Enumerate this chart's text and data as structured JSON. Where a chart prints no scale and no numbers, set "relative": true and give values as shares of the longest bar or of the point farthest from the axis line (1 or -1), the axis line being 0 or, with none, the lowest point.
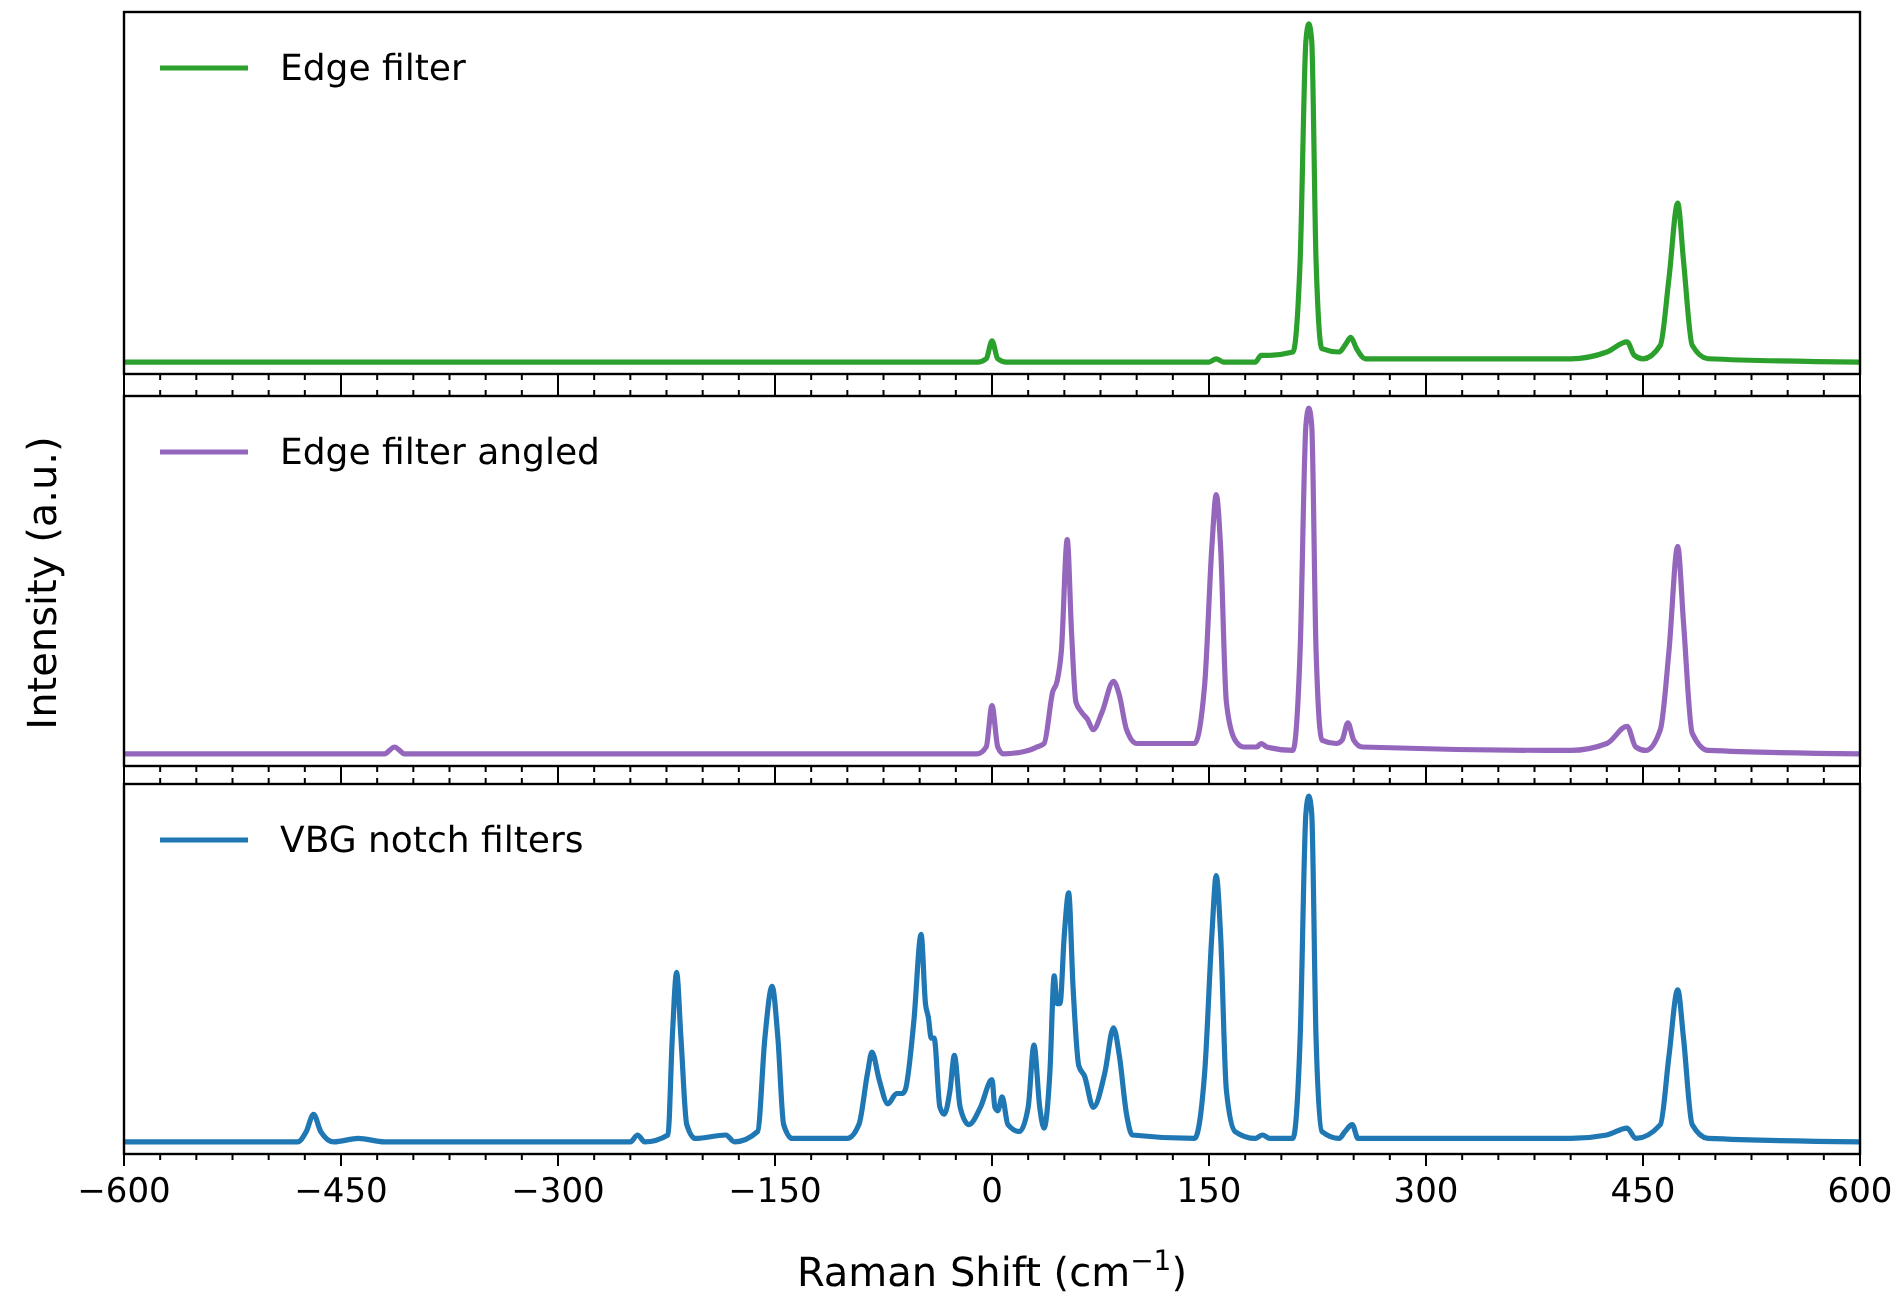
{
  "chart_data": [
    {
      "type": "line",
      "relative": true,
      "legend": "top left",
      "tick_labels": false,
      "xlim": [
        -600,
        600
      ],
      "xticks": [
        {
          "value": -600,
          "label": null
        },
        {
          "value": -575,
          "label": null
        },
        {
          "value": -550,
          "label": null
        },
        {
          "value": -525,
          "label": null
        },
        {
          "value": -500,
          "label": null
        },
        {
          "value": -475,
          "label": null
        },
        {
          "value": -450,
          "label": null
        },
        {
          "value": -425,
          "label": null
        },
        {
          "value": -400,
          "label": null
        },
        {
          "value": -375,
          "label": null
        },
        {
          "value": -350,
          "label": null
        },
        {
          "value": -325,
          "label": null
        },
        {
          "value": -300,
          "label": null
        },
        {
          "value": -275,
          "label": null
        },
        {
          "value": -250,
          "label": null
        },
        {
          "value": -225,
          "label": null
        },
        {
          "value": -200,
          "label": null
        },
        {
          "value": -175,
          "label": null
        },
        {
          "value": -150,
          "label": null
        },
        {
          "value": -125,
          "label": null
        },
        {
          "value": -100,
          "label": null
        },
        {
          "value": -75,
          "label": null
        },
        {
          "value": -50,
          "label": null
        },
        {
          "value": -25,
          "label": null
        },
        {
          "value": 0,
          "label": null
        },
        {
          "value": 25,
          "label": null
        },
        {
          "value": 50,
          "label": null
        },
        {
          "value": 75,
          "label": null
        },
        {
          "value": 100,
          "label": null
        },
        {
          "value": 125,
          "label": null
        },
        {
          "value": 150,
          "label": null
        },
        {
          "value": 175,
          "label": null
        },
        {
          "value": 200,
          "label": null
        },
        {
          "value": 225,
          "label": null
        },
        {
          "value": 250,
          "label": null
        },
        {
          "value": 275,
          "label": null
        },
        {
          "value": 300,
          "label": null
        },
        {
          "value": 325,
          "label": null
        },
        {
          "value": 350,
          "label": null
        },
        {
          "value": 375,
          "label": null
        },
        {
          "value": 400,
          "label": null
        },
        {
          "value": 425,
          "label": null
        },
        {
          "value": 450,
          "label": null
        },
        {
          "value": 475,
          "label": null
        },
        {
          "value": 500,
          "label": null
        },
        {
          "value": 525,
          "label": null
        },
        {
          "value": 550,
          "label": null
        },
        {
          "value": 575,
          "label": null
        },
        {
          "value": 600,
          "label": null
        }
      ],
      "series": [
        {
          "name": "Edge filter",
          "color": "#2ca02c",
          "x": [
            -600,
            -10,
            -4,
            0,
            4,
            10,
            150,
            155,
            160,
            182,
            186,
            190,
            208,
            213,
            217,
            219,
            221,
            224,
            228,
            240,
            244,
            248,
            252,
            258,
            400,
            425,
            439,
            444,
            450,
            462,
            468,
            474,
            478,
            484,
            495,
            600
          ],
          "values": [
            0,
            0,
            0.01,
            0.063,
            0.01,
            0,
            0,
            0.01,
            0,
            0,
            0.02,
            0.02,
            0.03,
            0.3,
            0.95,
            1,
            0.95,
            0.3,
            0.04,
            0.03,
            0.05,
            0.073,
            0.04,
            0.01,
            0.01,
            0.03,
            0.06,
            0.02,
            0.01,
            0.05,
            0.25,
            0.47,
            0.3,
            0.05,
            0.01,
            0
          ]
        }
      ]
    },
    {
      "type": "line",
      "relative": true,
      "legend": "top left",
      "tick_labels": false,
      "xlim": [
        -600,
        600
      ],
      "ylabel": "Intensity (a.u.)",
      "xticks": [
        {
          "value": -600,
          "label": null
        },
        {
          "value": -575,
          "label": null
        },
        {
          "value": -550,
          "label": null
        },
        {
          "value": -525,
          "label": null
        },
        {
          "value": -500,
          "label": null
        },
        {
          "value": -475,
          "label": null
        },
        {
          "value": -450,
          "label": null
        },
        {
          "value": -425,
          "label": null
        },
        {
          "value": -400,
          "label": null
        },
        {
          "value": -375,
          "label": null
        },
        {
          "value": -350,
          "label": null
        },
        {
          "value": -325,
          "label": null
        },
        {
          "value": -300,
          "label": null
        },
        {
          "value": -275,
          "label": null
        },
        {
          "value": -250,
          "label": null
        },
        {
          "value": -225,
          "label": null
        },
        {
          "value": -200,
          "label": null
        },
        {
          "value": -175,
          "label": null
        },
        {
          "value": -150,
          "label": null
        },
        {
          "value": -125,
          "label": null
        },
        {
          "value": -100,
          "label": null
        },
        {
          "value": -75,
          "label": null
        },
        {
          "value": -50,
          "label": null
        },
        {
          "value": -25,
          "label": null
        },
        {
          "value": 0,
          "label": null
        },
        {
          "value": 25,
          "label": null
        },
        {
          "value": 50,
          "label": null
        },
        {
          "value": 75,
          "label": null
        },
        {
          "value": 100,
          "label": null
        },
        {
          "value": 125,
          "label": null
        },
        {
          "value": 150,
          "label": null
        },
        {
          "value": 175,
          "label": null
        },
        {
          "value": 200,
          "label": null
        },
        {
          "value": 225,
          "label": null
        },
        {
          "value": 250,
          "label": null
        },
        {
          "value": 275,
          "label": null
        },
        {
          "value": 300,
          "label": null
        },
        {
          "value": 325,
          "label": null
        },
        {
          "value": 350,
          "label": null
        },
        {
          "value": 375,
          "label": null
        },
        {
          "value": 400,
          "label": null
        },
        {
          "value": 425,
          "label": null
        },
        {
          "value": 450,
          "label": null
        },
        {
          "value": 475,
          "label": null
        },
        {
          "value": 500,
          "label": null
        },
        {
          "value": 525,
          "label": null
        },
        {
          "value": 550,
          "label": null
        },
        {
          "value": 575,
          "label": null
        },
        {
          "value": 600,
          "label": null
        }
      ],
      "series": [
        {
          "name": "Edge filter angled",
          "color": "#9467bd",
          "x": [
            -600,
            -420,
            -413,
            -406,
            -10,
            -4,
            0,
            4,
            8,
            25,
            31,
            36,
            42,
            45,
            48,
            52,
            55,
            58,
            62,
            66,
            70,
            76,
            84,
            88,
            93,
            100,
            140,
            147,
            152,
            155,
            158,
            162,
            168,
            174,
            183,
            186,
            190,
            208,
            213,
            217,
            219,
            221,
            224,
            228,
            238,
            242,
            246,
            250,
            256,
            400,
            425,
            439,
            445,
            452,
            462,
            468,
            474,
            478,
            484,
            495,
            600
          ],
          "values": [
            0,
            0,
            0.02,
            0,
            0,
            0.02,
            0.14,
            0.02,
            0,
            0.01,
            0.02,
            0.03,
            0.18,
            0.21,
            0.3,
            0.62,
            0.35,
            0.15,
            0.12,
            0.1,
            0.07,
            0.12,
            0.21,
            0.17,
            0.07,
            0.03,
            0.03,
            0.2,
            0.6,
            0.75,
            0.6,
            0.15,
            0.04,
            0.02,
            0.02,
            0.03,
            0.02,
            0.01,
            0.3,
            0.95,
            1,
            0.95,
            0.3,
            0.04,
            0.03,
            0.04,
            0.09,
            0.04,
            0.02,
            0.01,
            0.03,
            0.08,
            0.02,
            0.01,
            0.07,
            0.3,
            0.6,
            0.38,
            0.06,
            0.01,
            0
          ]
        }
      ]
    },
    {
      "type": "line",
      "relative": true,
      "legend": "top left",
      "tick_labels": "x",
      "xlim": [
        -600,
        600
      ],
      "xlabel": "Raman Shift (cm$^{−1}$)",
      "xticks": [
        {
          "value": -600,
          "label": "−600"
        },
        {
          "value": -575,
          "label": null
        },
        {
          "value": -550,
          "label": null
        },
        {
          "value": -525,
          "label": null
        },
        {
          "value": -500,
          "label": null
        },
        {
          "value": -475,
          "label": null
        },
        {
          "value": -450,
          "label": "−450"
        },
        {
          "value": -425,
          "label": null
        },
        {
          "value": -400,
          "label": null
        },
        {
          "value": -375,
          "label": null
        },
        {
          "value": -350,
          "label": null
        },
        {
          "value": -325,
          "label": null
        },
        {
          "value": -300,
          "label": "−300"
        },
        {
          "value": -275,
          "label": null
        },
        {
          "value": -250,
          "label": null
        },
        {
          "value": -225,
          "label": null
        },
        {
          "value": -200,
          "label": null
        },
        {
          "value": -175,
          "label": null
        },
        {
          "value": -150,
          "label": "−150"
        },
        {
          "value": -125,
          "label": null
        },
        {
          "value": -100,
          "label": null
        },
        {
          "value": -75,
          "label": null
        },
        {
          "value": -50,
          "label": null
        },
        {
          "value": -25,
          "label": null
        },
        0,
        {
          "value": 25,
          "label": null
        },
        {
          "value": 50,
          "label": null
        },
        {
          "value": 75,
          "label": null
        },
        {
          "value": 100,
          "label": null
        },
        {
          "value": 125,
          "label": null
        },
        150,
        {
          "value": 175,
          "label": null
        },
        {
          "value": 200,
          "label": null
        },
        {
          "value": 225,
          "label": null
        },
        {
          "value": 250,
          "label": null
        },
        {
          "value": 275,
          "label": null
        },
        300,
        {
          "value": 325,
          "label": null
        },
        {
          "value": 350,
          "label": null
        },
        {
          "value": 375,
          "label": null
        },
        {
          "value": 400,
          "label": null
        },
        {
          "value": 425,
          "label": null
        },
        450,
        {
          "value": 475,
          "label": null
        },
        {
          "value": 500,
          "label": null
        },
        {
          "value": 525,
          "label": null
        },
        {
          "value": 550,
          "label": null
        },
        {
          "value": 575,
          "label": null
        },
        600
      ],
      "series": [
        {
          "name": "VBG notch filters",
          "color": "#1f77b4",
          "x": [
            -600,
            -480,
            -474,
            -469,
            -464,
            -455,
            -438,
            -420,
            -250,
            -245,
            -240,
            -224,
            -221,
            -218,
            -215,
            -211,
            -205,
            -184,
            -178,
            -162,
            -157,
            -152,
            -148,
            -144,
            -138,
            -100,
            -92,
            -86,
            -83,
            -78,
            -72,
            -66,
            -62,
            -60,
            -54,
            -49,
            -46,
            -44,
            -42,
            -40,
            -36,
            -33,
            -29,
            -26,
            -22,
            -16,
            -8,
            0,
            2,
            4,
            7,
            11,
            19,
            25,
            29,
            33,
            36,
            40,
            43,
            45,
            47,
            50,
            53,
            56,
            60,
            64,
            70,
            78,
            84,
            88,
            93,
            97,
            140,
            147,
            152,
            155,
            158,
            162,
            168,
            182,
            187,
            192,
            208,
            213,
            217,
            219,
            221,
            224,
            228,
            240,
            244,
            249,
            253,
            400,
            425,
            439,
            445,
            462,
            468,
            474,
            478,
            484,
            495,
            600
          ],
          "values": [
            0,
            0,
            0.03,
            0.08,
            0.03,
            0,
            0.01,
            0,
            0,
            0.02,
            0,
            0.02,
            0.3,
            0.49,
            0.3,
            0.05,
            0.01,
            0.02,
            0,
            0.03,
            0.3,
            0.45,
            0.3,
            0.05,
            0.01,
            0.01,
            0.05,
            0.2,
            0.26,
            0.18,
            0.11,
            0.14,
            0.14,
            0.15,
            0.35,
            0.6,
            0.4,
            0.36,
            0.3,
            0.3,
            0.1,
            0.08,
            0.15,
            0.25,
            0.1,
            0.05,
            0.1,
            0.18,
            0.1,
            0.09,
            0.13,
            0.05,
            0.03,
            0.1,
            0.28,
            0.1,
            0.04,
            0.2,
            0.48,
            0.4,
            0.4,
            0.6,
            0.72,
            0.45,
            0.22,
            0.19,
            0.1,
            0.2,
            0.33,
            0.25,
            0.08,
            0.02,
            0.01,
            0.2,
            0.6,
            0.77,
            0.6,
            0.15,
            0.03,
            0.01,
            0.02,
            0.01,
            0.01,
            0.3,
            0.95,
            1,
            0.95,
            0.3,
            0.03,
            0.01,
            0.03,
            0.05,
            0.01,
            0.01,
            0.02,
            0.04,
            0.01,
            0.05,
            0.25,
            0.44,
            0.3,
            0.05,
            0.01,
            0
          ]
        }
      ]
    }
  ]
}
